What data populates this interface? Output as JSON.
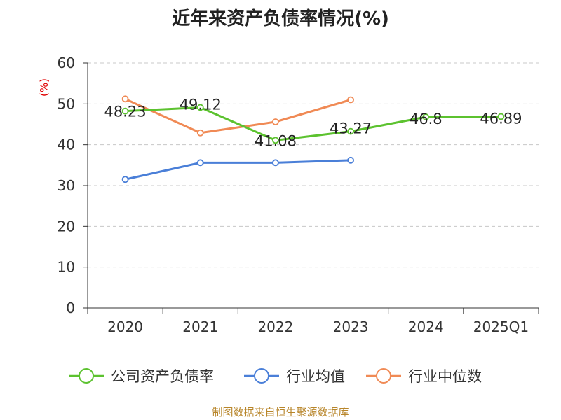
{
  "chart_data": {
    "type": "line",
    "title": "近年来资产负债率情况(%)",
    "ylabel": "(%)",
    "ylim": [
      0,
      60
    ],
    "yticks": [
      0,
      10,
      20,
      30,
      40,
      50,
      60
    ],
    "grid": true,
    "legend_position": "bottom",
    "categories": [
      "2020",
      "2021",
      "2022",
      "2023",
      "2024",
      "2025Q1"
    ],
    "series": [
      {
        "name": "公司资产负债率",
        "color": "#5cc22f",
        "values": [
          48.23,
          49.12,
          41.08,
          43.27,
          46.8,
          46.89
        ],
        "labels": [
          "48.23",
          "49.12",
          "41.08",
          "43.27",
          "46.8",
          "46.89"
        ]
      },
      {
        "name": "行业均值",
        "color": "#4a7fd8",
        "values": [
          31.5,
          35.6,
          35.6,
          36.2,
          null,
          null
        ]
      },
      {
        "name": "行业中位数",
        "color": "#f08a55",
        "values": [
          51.2,
          42.9,
          45.6,
          51.0,
          null,
          null
        ]
      }
    ]
  },
  "source_text": "制图数据来自恒生聚源数据库"
}
